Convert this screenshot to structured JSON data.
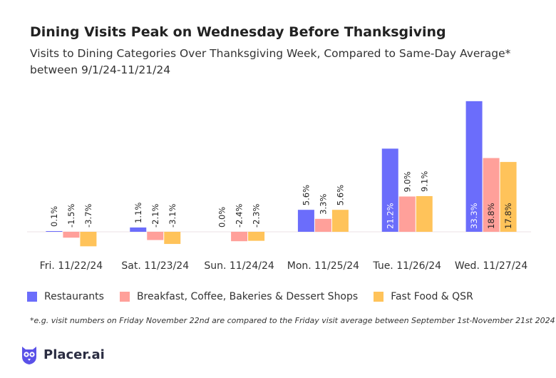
{
  "title": "Dining Visits Peak on Wednesday Before Thanksgiving",
  "subtitle": "Visits to Dining Categories Over Thanksgiving Week, Compared to Same-Day Average* between 9/1/24-11/21/24",
  "footnote": "*e.g. visit numbers on Friday November 22nd are compared to the Friday visit average between September 1st-November 21st 2024",
  "brand": {
    "name": "Placer.ai",
    "color": "#5a51e8"
  },
  "colors": {
    "restaurants": "#6b6dfb",
    "breakfast": "#ffa09a",
    "fastfood": "#ffc35a"
  },
  "chart_data": {
    "type": "bar",
    "categories": [
      "Fri. 11/22/24",
      "Sat. 11/23/24",
      "Sun. 11/24/24",
      "Mon. 11/25/24",
      "Tue. 11/26/24",
      "Wed. 11/27/24"
    ],
    "series": [
      {
        "name": "Restaurants",
        "color": "#6b6dfb",
        "values": [
          0.1,
          1.1,
          0.0,
          5.6,
          21.2,
          33.3
        ],
        "labels": [
          "0.1%",
          "1.1%",
          "0.0%",
          "5.6%",
          "21.2%",
          "33.3%"
        ]
      },
      {
        "name": "Breakfast, Coffee, Bakeries & Dessert Shops",
        "color": "#ffa09a",
        "values": [
          -1.5,
          -2.1,
          -2.4,
          3.3,
          9.0,
          18.8
        ],
        "labels": [
          "-1.5%",
          "-2.1%",
          "-2.4%",
          "3.3%",
          "9.0%",
          "18.8%"
        ]
      },
      {
        "name": "Fast Food & QSR",
        "color": "#ffc35a",
        "values": [
          -3.7,
          -3.1,
          -2.3,
          5.6,
          9.1,
          17.8
        ],
        "labels": [
          "-3.7%",
          "-3.1%",
          "-2.3%",
          "5.6%",
          "9.1%",
          "17.8%"
        ]
      }
    ],
    "ylim": [
      -5,
      35
    ],
    "grid": false,
    "legend_position": "bottom-left"
  }
}
